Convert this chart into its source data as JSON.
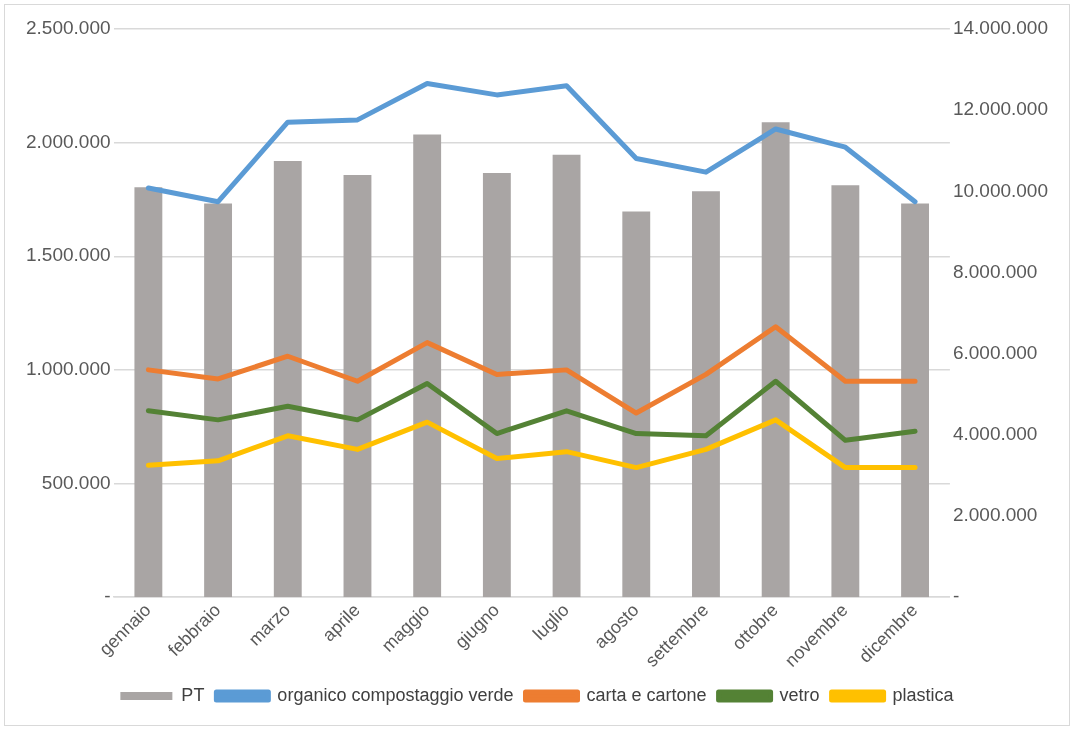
{
  "chart_data": {
    "type": "bar",
    "categories": [
      "gennaio",
      "febbraio",
      "marzo",
      "aprile",
      "maggio",
      "giugno",
      "luglio",
      "agosto",
      "settembre",
      "ottobre",
      "novembre",
      "dicembre"
    ],
    "series": [
      {
        "name": "PT",
        "axis": "y2",
        "color": "#a9a5a4",
        "values": [
          10100000,
          9700000,
          10750000,
          10400000,
          11400000,
          10450000,
          10900000,
          9500000,
          10000000,
          11700000,
          10150000,
          9700000
        ]
      },
      {
        "name": "organico compostaggio verde",
        "type": "line",
        "color": "#5b9bd5",
        "values": [
          1800000,
          1740000,
          2090000,
          2100000,
          2260000,
          2210000,
          2250000,
          1930000,
          1870000,
          2060000,
          1980000,
          1740000
        ]
      },
      {
        "name": "carta e cartone",
        "type": "line",
        "color": "#ed7d31",
        "values": [
          1000000,
          960000,
          1060000,
          950000,
          1120000,
          980000,
          1000000,
          810000,
          980000,
          1190000,
          950000,
          950000
        ]
      },
      {
        "name": "vetro",
        "type": "line",
        "color": "#548235",
        "values": [
          820000,
          780000,
          840000,
          780000,
          940000,
          720000,
          820000,
          720000,
          710000,
          950000,
          690000,
          730000
        ]
      },
      {
        "name": "plastica",
        "type": "line",
        "color": "#ffc000",
        "values": [
          580000,
          600000,
          710000,
          650000,
          770000,
          610000,
          640000,
          570000,
          650000,
          780000,
          570000,
          570000
        ]
      }
    ],
    "ylim": [
      0,
      2500000
    ],
    "yticks": [
      {
        "value": 0,
        "label": "-"
      },
      {
        "value": 500000,
        "label": "500.000"
      },
      {
        "value": 1000000,
        "label": "1.000.000"
      },
      {
        "value": 1500000,
        "label": "1.500.000"
      },
      {
        "value": 2000000,
        "label": "2.000.000"
      },
      {
        "value": 2500000,
        "label": "2.500.000"
      }
    ],
    "y2lim": [
      0,
      14000000
    ],
    "y2ticks": [
      {
        "value": 0,
        "label": "-"
      },
      {
        "value": 2000000,
        "label": "2.000.000"
      },
      {
        "value": 4000000,
        "label": "4.000.000"
      },
      {
        "value": 6000000,
        "label": "6.000.000"
      },
      {
        "value": 8000000,
        "label": "8.000.000"
      },
      {
        "value": 10000000,
        "label": "10.000.000"
      },
      {
        "value": 12000000,
        "label": "12.000.000"
      },
      {
        "value": 14000000,
        "label": "14.000.000"
      }
    ],
    "grid": "y",
    "legend": "bottom",
    "marker": "none",
    "line_style": "solid"
  }
}
